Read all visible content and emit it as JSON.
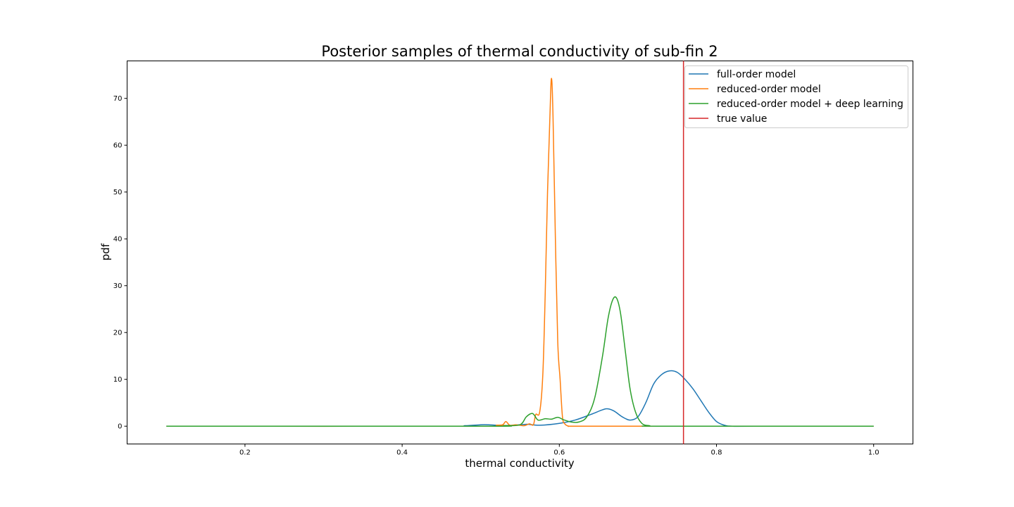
{
  "chart_data": {
    "type": "line",
    "title": "Posterior samples of thermal conductivity of sub-fin 2",
    "xlabel": "thermal conductivity",
    "ylabel": "pdf",
    "xlim": [
      0.05,
      1.05
    ],
    "ylim": [
      -3.8,
      78.0
    ],
    "xticks": [
      0.2,
      0.4,
      0.6,
      0.8,
      1.0
    ],
    "xtick_labels": [
      "0.2",
      "0.4",
      "0.6",
      "0.8",
      "1.0"
    ],
    "yticks": [
      0,
      10,
      20,
      30,
      40,
      50,
      60,
      70
    ],
    "ytick_labels": [
      "0",
      "10",
      "20",
      "30",
      "40",
      "50",
      "60",
      "70"
    ],
    "grid": false,
    "legend_position": "top-right",
    "series": [
      {
        "name": "full-order model",
        "color": "#1f77b4",
        "x": [
          0.1,
          0.45,
          0.48,
          0.5,
          0.51,
          0.52,
          0.535,
          0.55,
          0.56,
          0.575,
          0.6,
          0.62,
          0.64,
          0.655,
          0.662,
          0.67,
          0.68,
          0.69,
          0.7,
          0.71,
          0.72,
          0.73,
          0.74,
          0.75,
          0.76,
          0.77,
          0.78,
          0.79,
          0.8,
          0.81,
          0.82,
          0.85,
          1.0
        ],
        "y": [
          0.0,
          0.0,
          0.1,
          0.3,
          0.3,
          0.2,
          0.15,
          0.3,
          0.4,
          0.2,
          0.6,
          1.3,
          2.5,
          3.5,
          3.7,
          3.2,
          2.0,
          1.3,
          2.0,
          5.0,
          9.0,
          11.0,
          11.8,
          11.5,
          10.0,
          8.0,
          5.5,
          3.0,
          1.0,
          0.2,
          0.0,
          0.0,
          0.0
        ]
      },
      {
        "name": "reduced-order model",
        "color": "#ff7f0e",
        "x": [
          0.1,
          0.5,
          0.52,
          0.528,
          0.532,
          0.537,
          0.545,
          0.555,
          0.562,
          0.567,
          0.57,
          0.575,
          0.579,
          0.582,
          0.585,
          0.588,
          0.59,
          0.592,
          0.595,
          0.598,
          0.601,
          0.604,
          0.607,
          0.612,
          0.62,
          0.7,
          1.0
        ],
        "y": [
          0.0,
          0.0,
          0.2,
          0.3,
          1.0,
          0.2,
          0.3,
          0.1,
          0.5,
          0.3,
          2.5,
          3.0,
          11.0,
          28.0,
          50.0,
          66.0,
          74.3,
          66.0,
          40.0,
          18.0,
          10.0,
          2.0,
          0.5,
          0.0,
          0.0,
          0.0,
          0.0
        ]
      },
      {
        "name": "reduced-order model + deep learning",
        "color": "#2ca02c",
        "x": [
          0.1,
          0.5,
          0.53,
          0.55,
          0.558,
          0.566,
          0.573,
          0.582,
          0.59,
          0.598,
          0.605,
          0.615,
          0.625,
          0.635,
          0.645,
          0.655,
          0.662,
          0.668,
          0.673,
          0.678,
          0.684,
          0.69,
          0.697,
          0.705,
          0.715,
          0.73,
          1.0
        ],
        "y": [
          0.0,
          0.0,
          0.1,
          0.3,
          2.0,
          2.7,
          1.3,
          1.6,
          1.5,
          1.9,
          1.4,
          0.9,
          0.9,
          2.0,
          6.0,
          15.0,
          23.0,
          27.0,
          27.3,
          24.0,
          16.0,
          8.0,
          3.0,
          0.6,
          0.1,
          0.0,
          0.0
        ]
      }
    ],
    "vlines": [
      {
        "name": "true value",
        "color": "#d62728",
        "x": 0.758
      }
    ]
  }
}
